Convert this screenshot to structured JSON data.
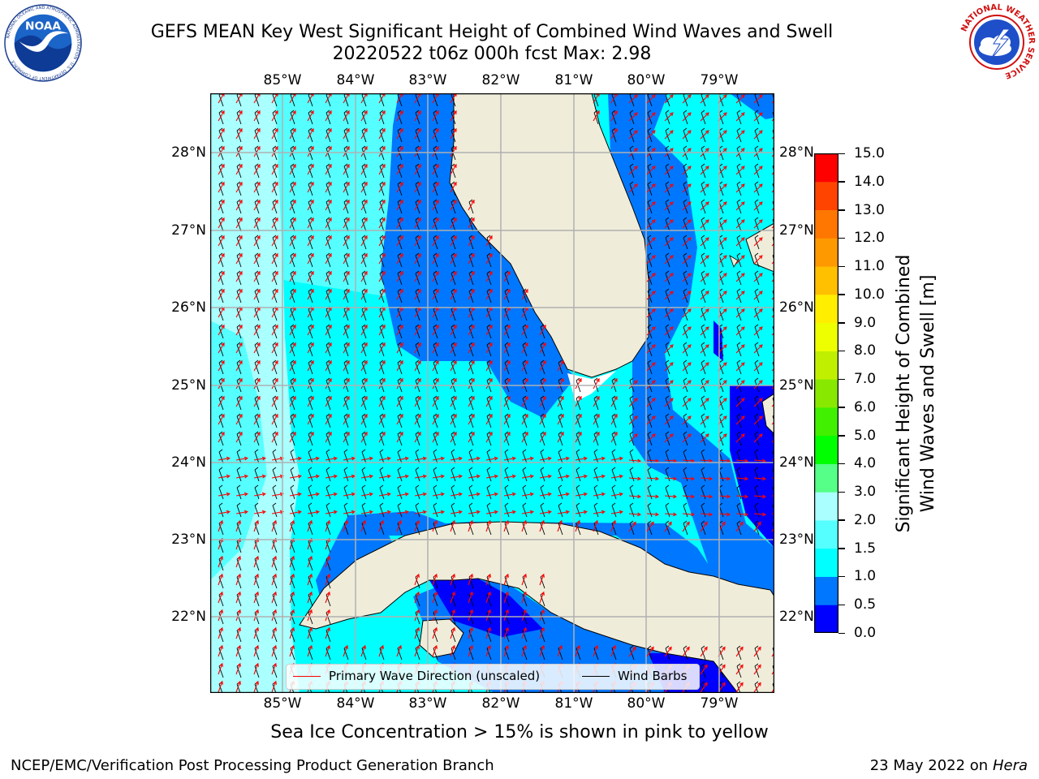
{
  "title": {
    "line1": "GEFS MEAN Key West Significant Height of Combined Wind Waves and Swell",
    "line2": "20220522 t06z 000h fcst   Max: 2.98"
  },
  "logos": {
    "left": {
      "icon": "noaa-logo",
      "text": "NOAA",
      "ring_text": "NATIONAL OCEANIC AND ATMOSPHERIC ADMINISTRATION · U.S. DEPARTMENT OF COMMERCE"
    },
    "right": {
      "icon": "nws-logo",
      "ring_text": "NATIONAL WEATHER SERVICE"
    }
  },
  "map": {
    "longitude_labels": [
      "85°W",
      "84°W",
      "83°W",
      "82°W",
      "81°W",
      "80°W",
      "79°W"
    ],
    "latitude_labels": [
      "28°N",
      "27°N",
      "26°N",
      "25°N",
      "24°N",
      "23°N",
      "22°N"
    ],
    "lon_range": [
      -86.0,
      -78.3
    ],
    "lat_range": [
      21.0,
      28.8
    ],
    "land_color": "#efedda",
    "grid_color": "#b0b0b0"
  },
  "colorbar": {
    "ticks": [
      "15.0",
      "14.0",
      "13.0",
      "12.0",
      "11.0",
      "10.0",
      "9.0",
      "8.0",
      "7.0",
      "6.0",
      "5.0",
      "4.0",
      "3.0",
      "2.0",
      "1.5",
      "1.0",
      "0.5",
      "0.0"
    ],
    "colors_bottom_to_top": [
      "#0000ff",
      "#0077ff",
      "#00ffff",
      "#55ffff",
      "#aaffff",
      "#55ff88",
      "#00ff00",
      "#40f000",
      "#88e800",
      "#c0f000",
      "#eeff00",
      "#ffee00",
      "#ffc000",
      "#ff9900",
      "#ff7700",
      "#ff4400",
      "#ff0000"
    ],
    "label_line1": "Significant Height of Combined",
    "label_line2": "Wind Waves and Swell [m]"
  },
  "legend": {
    "primary_wave": "Primary Wave Direction (unscaled)",
    "primary_wave_color": "#ff0000",
    "wind_barbs": "Wind Barbs",
    "wind_barbs_color": "#000000"
  },
  "footer": {
    "ice_note": "Sea Ice Concentration > 15% is shown in pink to yellow",
    "left": "NCEP/EMC/Verification Post Processing Product Generation Branch",
    "date": "23 May 2022 on",
    "host": "Hera"
  }
}
